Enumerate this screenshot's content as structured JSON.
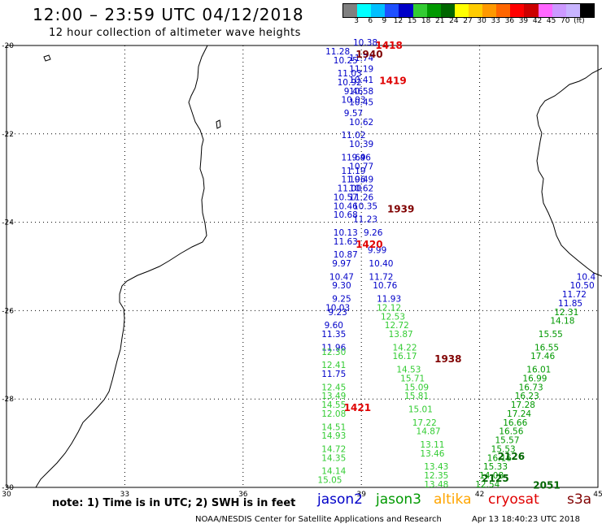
{
  "header": {
    "title": "12:00 – 23:59 UTC 04/12/2018",
    "subtitle": "12 hour collection of altimeter wave heights"
  },
  "colorbar": {
    "colors": [
      "#808080",
      "#00ffff",
      "#00bfff",
      "#1e50ff",
      "#0000c8",
      "#33cc33",
      "#009900",
      "#006600",
      "#ffff00",
      "#ffcc00",
      "#ff9900",
      "#ff6600",
      "#ff0000",
      "#cc0000",
      "#ff66ff",
      "#cc99ff",
      "#c8b4ff",
      "#000000"
    ],
    "labels": [
      "3",
      "6",
      "9",
      "12",
      "15",
      "18",
      "21",
      "24",
      "27",
      "30",
      "33",
      "36",
      "39",
      "42",
      "45",
      "70",
      "(ft)"
    ]
  },
  "axes": {
    "lon_ticks": [
      "30",
      "33",
      "36",
      "39",
      "42",
      "45"
    ],
    "lat_ticks": [
      "-20",
      "-22",
      "-24",
      "-26",
      "-28",
      "-30"
    ]
  },
  "tracks": [
    {
      "sat": "jason2",
      "color": "#0000c8",
      "points": [
        [
          "10.38",
          39.1,
          -20.0
        ],
        [
          "11.28",
          38.4,
          -20.2
        ],
        [
          "10.25",
          38.6,
          -20.4
        ],
        [
          "11.03",
          38.7,
          -20.7
        ],
        [
          "10.92",
          38.7,
          -20.9
        ],
        [
          "9.46",
          38.8,
          -21.1
        ],
        [
          "10.03",
          38.8,
          -21.3
        ],
        [
          "9.57",
          38.8,
          -21.6
        ],
        [
          "11.02",
          38.8,
          -22.1
        ],
        [
          "11.69",
          38.8,
          -22.6
        ],
        [
          "11.19",
          38.8,
          -22.9
        ],
        [
          "11.96",
          38.8,
          -23.1
        ],
        [
          "11.00",
          38.7,
          -23.3
        ],
        [
          "10.57",
          38.6,
          -23.5
        ],
        [
          "10.46",
          38.6,
          -23.7
        ],
        [
          "10.68",
          38.6,
          -23.9
        ],
        [
          "10.13",
          38.6,
          -24.3
        ],
        [
          "11.63",
          38.6,
          -24.5
        ],
        [
          "10.87",
          38.6,
          -24.8
        ],
        [
          "9.97",
          38.5,
          -25.0
        ],
        [
          "10.47",
          38.5,
          -25.3
        ],
        [
          "9.30",
          38.5,
          -25.5
        ],
        [
          "9.25",
          38.5,
          -25.8
        ],
        [
          "10.03",
          38.4,
          -26.0
        ],
        [
          "9.23",
          38.4,
          -26.1
        ],
        [
          "9.60",
          38.3,
          -26.4
        ],
        [
          "11.35",
          38.3,
          -26.6
        ],
        [
          "11.96",
          38.3,
          -26.9
        ],
        [
          "11.75",
          38.3,
          -27.5
        ]
      ]
    },
    {
      "sat": "jason2",
      "color": "#0000c8",
      "points": [
        [
          "11.74",
          39.0,
          -20.35
        ],
        [
          "11.19",
          39.0,
          -20.6
        ],
        [
          "10.41",
          39.0,
          -20.85
        ],
        [
          "10.58",
          39.0,
          -21.1
        ],
        [
          "10.45",
          39.0,
          -21.35
        ],
        [
          "10.62",
          39.0,
          -21.8
        ],
        [
          "10.39",
          39.0,
          -22.3
        ],
        [
          "9.46",
          39.0,
          -22.6
        ],
        [
          "10.77",
          39.0,
          -22.8
        ],
        [
          "10.49",
          39.0,
          -23.1
        ],
        [
          "10.62",
          39.0,
          -23.3
        ],
        [
          "11.26",
          39.0,
          -23.5
        ],
        [
          "10.35",
          39.1,
          -23.7
        ],
        [
          "11.23",
          39.1,
          -24.0
        ],
        [
          "9.26",
          39.3,
          -24.3
        ],
        [
          "9.99",
          39.4,
          -24.7
        ],
        [
          "10.40",
          39.5,
          -25.0
        ],
        [
          "11.72",
          39.5,
          -25.3
        ],
        [
          "10.76",
          39.6,
          -25.5
        ],
        [
          "11.93",
          39.7,
          -25.8
        ]
      ]
    },
    {
      "sat": "jason2",
      "color": "#0000c8",
      "points": [
        [
          "10.4",
          44.7,
          -25.3
        ],
        [
          "10.50",
          44.6,
          -25.5
        ],
        [
          "11.72",
          44.4,
          -25.7
        ],
        [
          "11.85",
          44.3,
          -25.9
        ]
      ]
    },
    {
      "sat": "jason3",
      "color": "#33cc33",
      "points": [
        [
          "12.30",
          38.3,
          -27.0
        ],
        [
          "12.41",
          38.3,
          -27.3
        ],
        [
          "12.45",
          38.3,
          -27.8
        ],
        [
          "13.49",
          38.3,
          -28.0
        ],
        [
          "14.55",
          38.3,
          -28.2
        ],
        [
          "12.08",
          38.3,
          -28.4
        ],
        [
          "14.51",
          38.3,
          -28.7
        ],
        [
          "14.93",
          38.3,
          -28.9
        ],
        [
          "14.72",
          38.3,
          -29.2
        ],
        [
          "14.35",
          38.3,
          -29.4
        ],
        [
          "14.14",
          38.3,
          -29.7
        ],
        [
          "15.05",
          38.2,
          -29.9
        ]
      ]
    },
    {
      "sat": "jason3",
      "color": "#33cc33",
      "points": [
        [
          "12.12",
          39.7,
          -26.0
        ],
        [
          "12.53",
          39.8,
          -26.2
        ],
        [
          "12.72",
          39.9,
          -26.4
        ],
        [
          "13.87",
          40.0,
          -26.6
        ],
        [
          "14.22",
          40.1,
          -26.9
        ],
        [
          "16.17",
          40.1,
          -27.1
        ],
        [
          "14.53",
          40.2,
          -27.4
        ],
        [
          "15.71",
          40.3,
          -27.6
        ],
        [
          "15.09",
          40.4,
          -27.8
        ],
        [
          "15.81",
          40.4,
          -28.0
        ],
        [
          "15.01",
          40.5,
          -28.3
        ],
        [
          "17.22",
          40.6,
          -28.6
        ],
        [
          "14.87",
          40.7,
          -28.8
        ],
        [
          "13.11",
          40.8,
          -29.1
        ],
        [
          "13.46",
          40.8,
          -29.3
        ],
        [
          "13.43",
          40.9,
          -29.6
        ],
        [
          "12.35",
          40.9,
          -29.8
        ],
        [
          "13.48",
          40.9,
          -30.0
        ]
      ]
    },
    {
      "sat": "jason3",
      "color": "#009900",
      "points": [
        [
          "12.31",
          44.2,
          -26.1
        ],
        [
          "14.18",
          44.1,
          -26.3
        ],
        [
          "15.55",
          43.8,
          -26.6
        ],
        [
          "16.55",
          43.7,
          -26.9
        ],
        [
          "17.46",
          43.6,
          -27.1
        ],
        [
          "16.01",
          43.5,
          -27.4
        ],
        [
          "16.99",
          43.4,
          -27.6
        ],
        [
          "16.73",
          43.3,
          -27.8
        ],
        [
          "16.23",
          43.2,
          -28.0
        ],
        [
          "17.28",
          43.1,
          -28.2
        ],
        [
          "17.24",
          43.0,
          -28.4
        ],
        [
          "16.66",
          42.9,
          -28.6
        ],
        [
          "16.56",
          42.8,
          -28.8
        ],
        [
          "15.57",
          42.7,
          -29.0
        ],
        [
          "15.53",
          42.6,
          -29.2
        ],
        [
          "16.16",
          42.5,
          -29.4
        ],
        [
          "15.33",
          42.4,
          -29.6
        ],
        [
          "14.08",
          42.3,
          -29.8
        ],
        [
          "12.54",
          42.2,
          -30.0
        ]
      ]
    }
  ],
  "cryosat_labels": [
    {
      "text": "1418",
      "lon": 39.7,
      "lat": -20.0,
      "color": "#e00000"
    },
    {
      "text": "1940",
      "lon": 39.2,
      "lat": -20.2,
      "color": "#800000"
    },
    {
      "text": "1419",
      "lon": 39.8,
      "lat": -20.8,
      "color": "#e00000"
    },
    {
      "text": "1939",
      "lon": 40.0,
      "lat": -23.7,
      "color": "#800000"
    },
    {
      "text": "1420",
      "lon": 39.2,
      "lat": -24.5,
      "color": "#e00000"
    },
    {
      "text": "1938",
      "lon": 41.2,
      "lat": -27.1,
      "color": "#800000"
    },
    {
      "text": "1421",
      "lon": 38.9,
      "lat": -28.2,
      "color": "#e00000"
    },
    {
      "text": "2126",
      "lon": 42.8,
      "lat": -29.3,
      "color": "#006600"
    },
    {
      "text": "2125",
      "lon": 42.4,
      "lat": -29.8,
      "color": "#006600"
    },
    {
      "text": "2051",
      "lon": 43.7,
      "lat": -29.95,
      "color": "#006600"
    }
  ],
  "footer": {
    "note": "note:  1) Time is in UTC;  2) SWH is in feet",
    "sats": [
      {
        "name": "jason2",
        "color": "#0000c8"
      },
      {
        "name": "jason3",
        "color": "#009900"
      },
      {
        "name": "altika",
        "color": "#ffa500"
      },
      {
        "name": "cryosat",
        "color": "#e00000"
      },
      {
        "name": "s3a",
        "color": "#800000"
      }
    ],
    "credit": "NOAA/NESDIS Center for Satellite Applications and Research",
    "timestamp": "Apr 13 18:40:23 UTC 2018"
  }
}
